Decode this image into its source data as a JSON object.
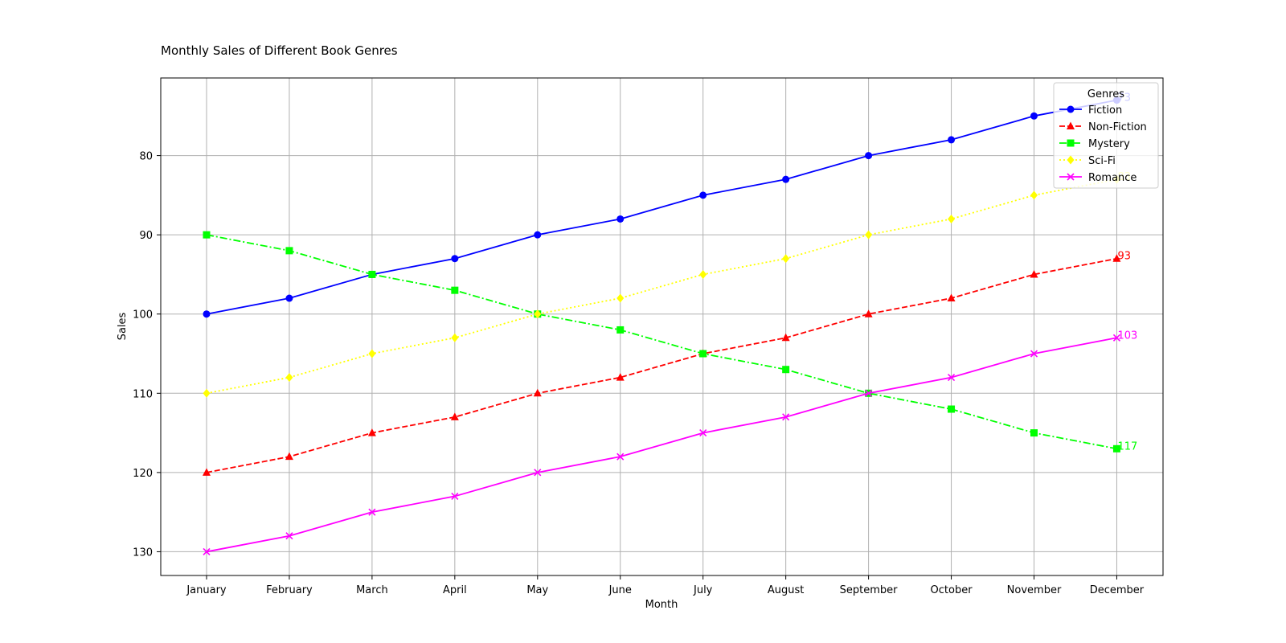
{
  "chart_data": {
    "type": "line",
    "title": "Monthly Sales of Different Book Genres",
    "xlabel": "Month",
    "ylabel": "Sales",
    "categories": [
      "January",
      "February",
      "March",
      "April",
      "May",
      "June",
      "July",
      "August",
      "September",
      "October",
      "November",
      "December"
    ],
    "ylim": [
      133,
      70.2
    ],
    "y_inverted": true,
    "yticks": [
      80,
      90,
      100,
      110,
      120,
      130
    ],
    "grid": true,
    "legend": {
      "title": "Genres",
      "placement": "top-right"
    },
    "series": [
      {
        "name": "Fiction",
        "color": "#0000ff",
        "marker": "circle",
        "dash": "solid",
        "values": [
          100,
          98,
          95,
          93,
          90,
          88,
          85,
          83,
          80,
          78,
          75,
          73
        ],
        "end_label": "73"
      },
      {
        "name": "Non-Fiction",
        "color": "#ff0000",
        "marker": "triangle",
        "dash": "dashed",
        "values": [
          120,
          118,
          115,
          113,
          110,
          108,
          105,
          103,
          100,
          98,
          95,
          93
        ],
        "end_label": "93"
      },
      {
        "name": "Mystery",
        "color": "#00ff00",
        "marker": "square",
        "dash": "dashdot",
        "values": [
          90,
          92,
          95,
          97,
          100,
          102,
          105,
          107,
          110,
          112,
          115,
          117
        ],
        "end_label": "117"
      },
      {
        "name": "Sci-Fi",
        "color": "#ffff00",
        "marker": "diamond",
        "dash": "dotted",
        "values": [
          110,
          108,
          105,
          103,
          100,
          98,
          95,
          93,
          90,
          88,
          85,
          83
        ],
        "end_label": "83"
      },
      {
        "name": "Romance",
        "color": "#ff00ff",
        "marker": "x",
        "dash": "solid",
        "values": [
          130,
          128,
          125,
          123,
          120,
          118,
          115,
          113,
          110,
          108,
          105,
          103
        ],
        "end_label": "103"
      }
    ]
  }
}
